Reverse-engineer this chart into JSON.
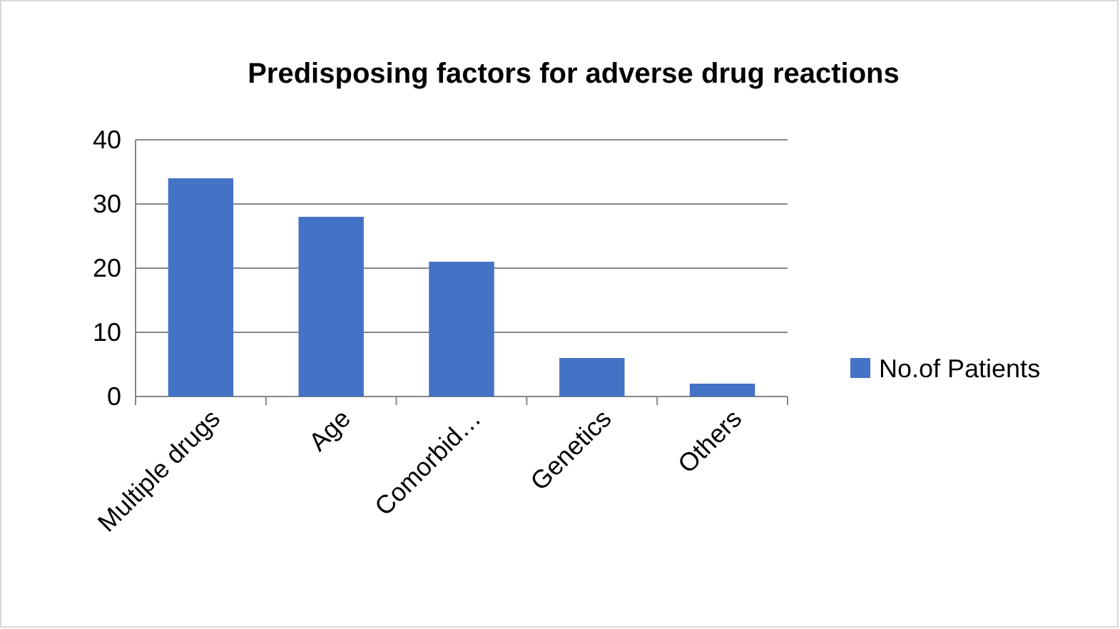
{
  "chart_data": {
    "type": "bar",
    "title": "Predisposing factors for adverse drug reactions",
    "categories": [
      "Multiple drugs",
      "Age",
      "Comorbid…",
      "Genetics",
      "Others"
    ],
    "series": [
      {
        "name": "No.of Patients",
        "color": "#4472c4",
        "values": [
          34,
          28,
          21,
          6,
          2
        ]
      }
    ],
    "ylim": [
      0,
      40
    ],
    "yticks": [
      0,
      10,
      20,
      30,
      40
    ],
    "grid": "y",
    "legend": "right"
  }
}
